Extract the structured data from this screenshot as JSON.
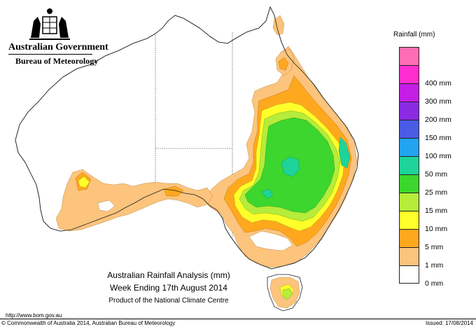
{
  "header": {
    "government": "Australian Government",
    "bureau": "Bureau of Meteorology"
  },
  "legend": {
    "title": "Rainfall (mm)",
    "items": [
      {
        "label": "",
        "color": "#ff6eb4"
      },
      {
        "label": "400 mm",
        "color": "#ff2ed0"
      },
      {
        "label": "300 mm",
        "color": "#c41ee6"
      },
      {
        "label": "200 mm",
        "color": "#8a2be2"
      },
      {
        "label": "150 mm",
        "color": "#4a5ce6"
      },
      {
        "label": "100 mm",
        "color": "#22a4f0"
      },
      {
        "label": "50 mm",
        "color": "#1ed49a"
      },
      {
        "label": "25 mm",
        "color": "#3cd62e"
      },
      {
        "label": "15 mm",
        "color": "#b6ec3a"
      },
      {
        "label": "10 mm",
        "color": "#ffff2a"
      },
      {
        "label": "5 mm",
        "color": "#ffa81e"
      },
      {
        "label": "1 mm",
        "color": "#fcc47c"
      },
      {
        "label": "0 mm",
        "color": "#ffffff"
      }
    ]
  },
  "caption": {
    "line1": "Australian Rainfall Analysis (mm)",
    "line2": "Week Ending 17th August 2014",
    "line3": "Product of the National Climate Centre"
  },
  "footer": {
    "url": "http://www.bom.gov.au",
    "copyright": "© Commonwealth of Australia 2014, Australian Bureau of Meteorology",
    "issued": "Issued: 17/08/2014"
  }
}
